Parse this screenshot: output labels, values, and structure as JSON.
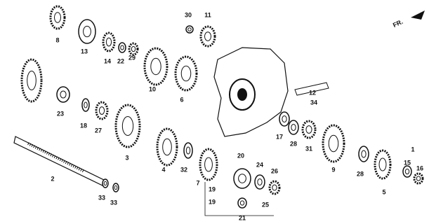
{
  "direction_label": "FR.",
  "labels": [
    "30",
    "11",
    "8",
    "13",
    "14",
    "22",
    "29",
    "10",
    "6",
    "12",
    "34",
    "23",
    "18",
    "27",
    "3",
    "4",
    "32",
    "2",
    "33",
    "33",
    "17",
    "28",
    "31",
    "9",
    "28",
    "5",
    "1",
    "15",
    "16",
    "20",
    "24",
    "26",
    "7",
    "19",
    "19",
    "25",
    "21"
  ]
}
